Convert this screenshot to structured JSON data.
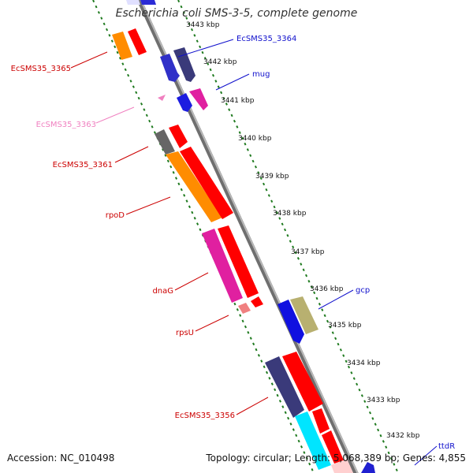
{
  "title": "Escherichia coli SMS-3-5, complete genome",
  "accession": "Accession: NC_010498",
  "summary": "Topology: circular; Length: 5,068,389 bp; Genes: 4,855",
  "colors": {
    "backbone": "#8a8a8a",
    "tick": "#1f7a1f",
    "forward_strand_label": "#1010cc",
    "reverse_strand_label": "#cc0000",
    "pseudo_label": "#f080c0"
  },
  "scale": {
    "unit": "kbp",
    "ticks": [
      "3443 kbp",
      "3442 kbp",
      "3441 kbp",
      "3440 kbp",
      "3439 kbp",
      "3438 kbp",
      "3437 kbp",
      "3436 kbp",
      "3435 kbp",
      "3434 kbp",
      "3433 kbp",
      "3432 kbp"
    ]
  },
  "gene_labels": {
    "forward": [
      "EcSMS35_3364",
      "mug",
      "gcp",
      "ttdR"
    ],
    "reverse": [
      "EcSMS35_3365",
      "EcSMS35_3363",
      "EcSMS35_3361",
      "rpoD",
      "dnaG",
      "rpsU",
      "EcSMS35_3356"
    ]
  }
}
